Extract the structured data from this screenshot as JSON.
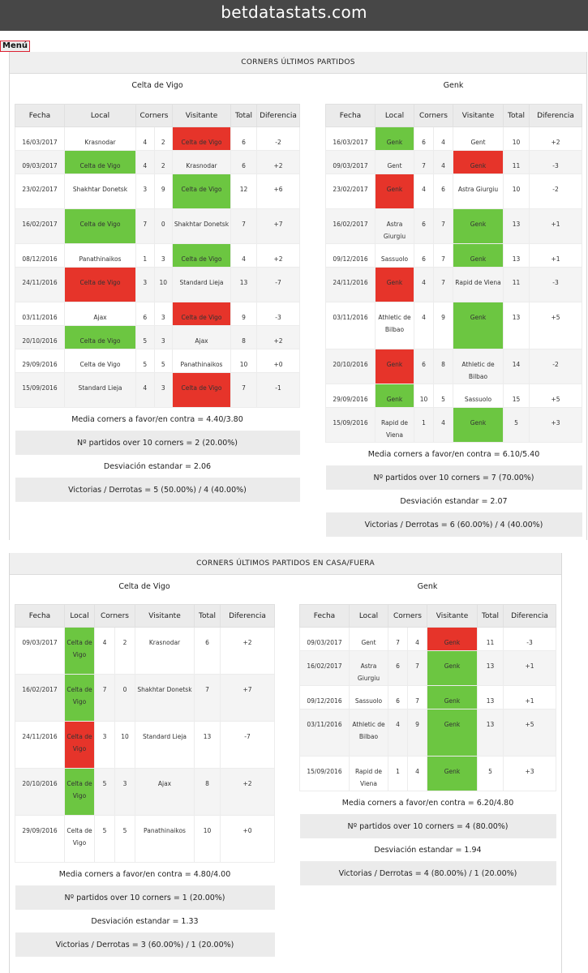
{
  "site_title": "betdatastats.com",
  "menu_label": "Menú",
  "columns": [
    "Fecha",
    "Local",
    "Corners",
    "Visitante",
    "Total",
    "Diferencia"
  ],
  "section1": {
    "title": "CORNERS ÚLTIMOS PARTIDOS",
    "left": {
      "team": "Celta de Vigo",
      "rows": [
        {
          "date": "16/03/2017",
          "home": "Krasnodar",
          "c1": "4",
          "c2": "2",
          "away": "Celta de Vigo",
          "total": "6",
          "diff": "-2"
        },
        {
          "date": "09/03/2017",
          "home": "Celta de Vigo",
          "c1": "4",
          "c2": "2",
          "away": "Krasnodar",
          "total": "6",
          "diff": "+2"
        },
        {
          "date": "23/02/2017",
          "home": "Shakhtar Donetsk",
          "c1": "3",
          "c2": "9",
          "away": "Celta de Vigo",
          "total": "12",
          "diff": "+6"
        },
        {
          "date": "16/02/2017",
          "home": "Celta de Vigo",
          "c1": "7",
          "c2": "0",
          "away": "Shakhtar Donetsk",
          "total": "7",
          "diff": "+7"
        },
        {
          "date": "08/12/2016",
          "home": "Panathinaikos",
          "c1": "1",
          "c2": "3",
          "away": "Celta de Vigo",
          "total": "4",
          "diff": "+2"
        },
        {
          "date": "24/11/2016",
          "home": "Celta de Vigo",
          "c1": "3",
          "c2": "10",
          "away": "Standard Lieja",
          "total": "13",
          "diff": "-7"
        },
        {
          "date": "03/11/2016",
          "home": "Ajax",
          "c1": "6",
          "c2": "3",
          "away": "Celta de Vigo",
          "total": "9",
          "diff": "-3"
        },
        {
          "date": "20/10/2016",
          "home": "Celta de Vigo",
          "c1": "5",
          "c2": "3",
          "away": "Ajax",
          "total": "8",
          "diff": "+2"
        },
        {
          "date": "29/09/2016",
          "home": "Celta de Vigo",
          "c1": "5",
          "c2": "5",
          "away": "Panathinaikos",
          "total": "10",
          "diff": "+0"
        },
        {
          "date": "15/09/2016",
          "home": "Standard Lieja",
          "c1": "4",
          "c2": "3",
          "away": "Celta de Vigo",
          "total": "7",
          "diff": "-1"
        }
      ],
      "stats": {
        "media": "Media corners a favor/en contra = 4.40/3.80",
        "over": "Nº partidos over 10 corners = 2 (20.00%)",
        "desv": "Desviación estandar = 2.06",
        "vd": "Victorias / Derrotas = 5 (50.00%) / 4 (40.00%)"
      }
    },
    "right": {
      "team": "Genk",
      "rows": [
        {
          "date": "16/03/2017",
          "home": "Genk",
          "c1": "6",
          "c2": "4",
          "away": "Gent",
          "total": "10",
          "diff": "+2"
        },
        {
          "date": "09/03/2017",
          "home": "Gent",
          "c1": "7",
          "c2": "4",
          "away": "Genk",
          "total": "11",
          "diff": "-3"
        },
        {
          "date": "23/02/2017",
          "home": "Genk",
          "c1": "4",
          "c2": "6",
          "away": "Astra Giurgiu",
          "total": "10",
          "diff": "-2"
        },
        {
          "date": "16/02/2017",
          "home": "Astra Giurgiu",
          "c1": "6",
          "c2": "7",
          "away": "Genk",
          "total": "13",
          "diff": "+1"
        },
        {
          "date": "09/12/2016",
          "home": "Sassuolo",
          "c1": "6",
          "c2": "7",
          "away": "Genk",
          "total": "13",
          "diff": "+1"
        },
        {
          "date": "24/11/2016",
          "home": "Genk",
          "c1": "4",
          "c2": "7",
          "away": "Rapid de Viena",
          "total": "11",
          "diff": "-3"
        },
        {
          "date": "03/11/2016",
          "home": "Athletic de Bilbao",
          "c1": "4",
          "c2": "9",
          "away": "Genk",
          "total": "13",
          "diff": "+5"
        },
        {
          "date": "20/10/2016",
          "home": "Genk",
          "c1": "6",
          "c2": "8",
          "away": "Athletic de Bilbao",
          "total": "14",
          "diff": "-2"
        },
        {
          "date": "29/09/2016",
          "home": "Genk",
          "c1": "10",
          "c2": "5",
          "away": "Sassuolo",
          "total": "15",
          "diff": "+5"
        },
        {
          "date": "15/09/2016",
          "home": "Rapid de Viena",
          "c1": "1",
          "c2": "4",
          "away": "Genk",
          "total": "5",
          "diff": "+3"
        }
      ],
      "stats": {
        "media": "Media corners a favor/en contra = 6.10/5.40",
        "over": "Nº partidos over 10 corners = 7 (70.00%)",
        "desv": "Desviación estandar = 2.07",
        "vd": "Victorias / Derrotas = 6 (60.00%) / 4 (40.00%)"
      }
    }
  },
  "section2": {
    "title": "CORNERS ÚLTIMOS PARTIDOS EN CASA/FUERA",
    "left": {
      "team": "Celta de Vigo",
      "rows": [
        {
          "date": "09/03/2017",
          "home": "Celta de Vigo",
          "c1": "4",
          "c2": "2",
          "away": "Krasnodar",
          "total": "6",
          "diff": "+2"
        },
        {
          "date": "16/02/2017",
          "home": "Celta de Vigo",
          "c1": "7",
          "c2": "0",
          "away": "Shakhtar Donetsk",
          "total": "7",
          "diff": "+7"
        },
        {
          "date": "24/11/2016",
          "home": "Celta de Vigo",
          "c1": "3",
          "c2": "10",
          "away": "Standard Lieja",
          "total": "13",
          "diff": "-7"
        },
        {
          "date": "20/10/2016",
          "home": "Celta de Vigo",
          "c1": "5",
          "c2": "3",
          "away": "Ajax",
          "total": "8",
          "diff": "+2"
        },
        {
          "date": "29/09/2016",
          "home": "Celta de Vigo",
          "c1": "5",
          "c2": "5",
          "away": "Panathinaikos",
          "total": "10",
          "diff": "+0"
        }
      ],
      "stats": {
        "media": "Media corners a favor/en contra = 4.80/4.00",
        "over": "Nº partidos over 10 corners = 1 (20.00%)",
        "desv": "Desviación estandar = 1.33",
        "vd": "Victorias / Derrotas = 3 (60.00%) / 1 (20.00%)"
      }
    },
    "right": {
      "team": "Genk",
      "rows": [
        {
          "date": "09/03/2017",
          "home": "Gent",
          "c1": "7",
          "c2": "4",
          "away": "Genk",
          "total": "11",
          "diff": "-3"
        },
        {
          "date": "16/02/2017",
          "home": "Astra Giurgiu",
          "c1": "6",
          "c2": "7",
          "away": "Genk",
          "total": "13",
          "diff": "+1"
        },
        {
          "date": "09/12/2016",
          "home": "Sassuolo",
          "c1": "6",
          "c2": "7",
          "away": "Genk",
          "total": "13",
          "diff": "+1"
        },
        {
          "date": "03/11/2016",
          "home": "Athletic de Bilbao",
          "c1": "4",
          "c2": "9",
          "away": "Genk",
          "total": "13",
          "diff": "+5"
        },
        {
          "date": "15/09/2016",
          "home": "Rapid de Viena",
          "c1": "1",
          "c2": "4",
          "away": "Genk",
          "total": "5",
          "diff": "+3"
        }
      ],
      "stats": {
        "media": "Media corners a favor/en contra = 6.20/4.80",
        "over": "Nº partidos over 10 corners = 4 (80.00%)",
        "desv": "Desviación estandar = 1.94",
        "vd": "Victorias / Derrotas = 4 (80.00%) / 1 (20.00%)"
      }
    }
  },
  "colors": {
    "win": "#6cc641",
    "loss": "#e6342a",
    "header_bar": "#474747"
  }
}
